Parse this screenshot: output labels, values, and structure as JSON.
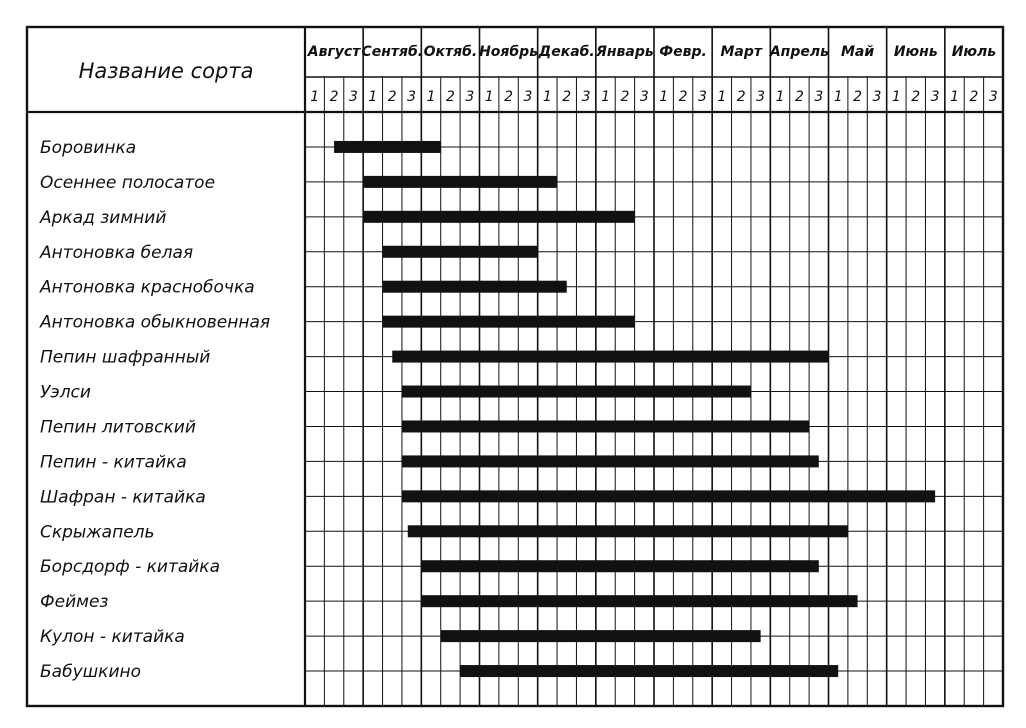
{
  "chart_data": {
    "type": "table",
    "header_label": "Название сорта",
    "months": [
      "Август",
      "Сентяб.",
      "Октяб.",
      "Ноябрь",
      "Декаб.",
      "Январь",
      "Февр.",
      "Март",
      "Апрель",
      "Май",
      "Июнь",
      "Июль"
    ],
    "decades": [
      "1",
      "2",
      "3"
    ],
    "varieties": [
      {
        "name": "Боровинка",
        "start": 1.5,
        "end": 7.0
      },
      {
        "name": "Осеннее полосатое",
        "start": 3.0,
        "end": 13.0
      },
      {
        "name": "Аркад зимний",
        "start": 3.0,
        "end": 17.0
      },
      {
        "name": "Антоновка белая",
        "start": 4.0,
        "end": 12.0
      },
      {
        "name": "Антоновка краснобочка",
        "start": 4.0,
        "end": 13.5
      },
      {
        "name": "Антоновка обыкновенная",
        "start": 4.0,
        "end": 17.0
      },
      {
        "name": "Пепин шафранный",
        "start": 4.5,
        "end": 27.0
      },
      {
        "name": "Уэлси",
        "start": 5.0,
        "end": 23.0
      },
      {
        "name": "Пепин литовский",
        "start": 5.0,
        "end": 26.0
      },
      {
        "name": "Пепин - китайка",
        "start": 5.0,
        "end": 26.5
      },
      {
        "name": "Шафран - китайка",
        "start": 5.0,
        "end": 32.5
      },
      {
        "name": "Скрыжапель",
        "start": 5.3,
        "end": 28.0
      },
      {
        "name": "Борсдорф - китайка",
        "start": 6.0,
        "end": 26.5
      },
      {
        "name": "Феймез",
        "start": 6.0,
        "end": 28.5
      },
      {
        "name": "Кулон - китайка",
        "start": 7.0,
        "end": 23.5
      },
      {
        "name": "Бабушкино",
        "start": 8.0,
        "end": 27.5
      }
    ]
  }
}
